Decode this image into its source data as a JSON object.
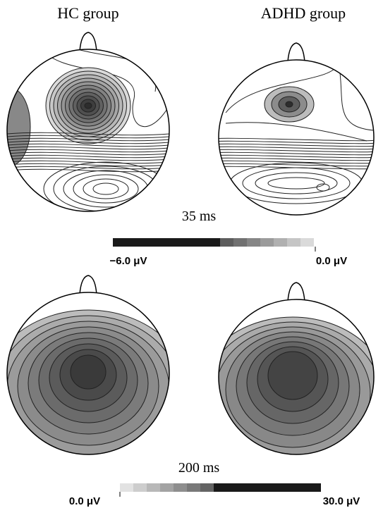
{
  "headers": [
    "HC group",
    "ADHD group"
  ],
  "panels": [
    {
      "time": "35 ms",
      "scale": {
        "min_label": "−6.0 μV",
        "max_label": "0.0 μV"
      }
    },
    {
      "time": "200 ms",
      "scale": {
        "min_label": "0.0 μV",
        "max_label": "30.0 μV"
      }
    }
  ]
}
